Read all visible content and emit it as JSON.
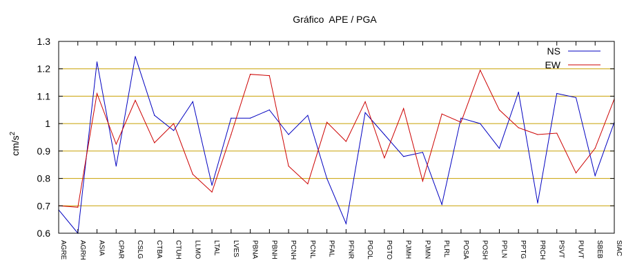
{
  "chart_data": {
    "type": "line",
    "title": "Gráfico  APE / PGA",
    "xlabel": "",
    "ylabel": "cm/s",
    "ylabel_superscript": "2",
    "ylim": [
      0.6,
      1.3
    ],
    "yticks": [
      "0.6",
      "0.7",
      "0.8",
      "0.9",
      "1",
      "1.1",
      "1.2",
      "1.3"
    ],
    "grid": "horizontal",
    "grid_color": "#c8a000",
    "legend_position": "top-right",
    "categories": [
      "AGRE",
      "AGRH",
      "ASIA",
      "CPAR",
      "CSLG",
      "CTBA",
      "CTUH",
      "LLMO",
      "LTAL",
      "LVES",
      "PBNA",
      "PBNH",
      "PCNH",
      "PCNL",
      "PFAL",
      "PFNR",
      "PGOL",
      "PGTO",
      "PJMH",
      "PJMN",
      "PLRL",
      "POSA",
      "POSH",
      "PPLN",
      "PPTG",
      "PRCH",
      "PSVT",
      "PUVT",
      "SBEB",
      "SIAC"
    ],
    "series": [
      {
        "name": "NS",
        "color": "#0000c0",
        "values": [
          0.685,
          0.6,
          1.225,
          0.845,
          1.245,
          1.03,
          0.975,
          1.08,
          0.775,
          1.02,
          1.02,
          1.05,
          0.96,
          1.03,
          0.8,
          0.635,
          1.04,
          0.96,
          0.88,
          0.895,
          0.705,
          1.02,
          1.0,
          0.91,
          1.115,
          0.71,
          1.11,
          1.095,
          0.81,
          1.005
        ]
      },
      {
        "name": "EW",
        "color": "#cc0000",
        "values": [
          0.7,
          0.695,
          1.11,
          0.925,
          1.085,
          0.93,
          1.0,
          0.815,
          0.75,
          0.96,
          1.18,
          1.175,
          0.845,
          0.78,
          1.005,
          0.935,
          1.08,
          0.875,
          1.055,
          0.79,
          1.035,
          1.005,
          1.195,
          1.05,
          0.985,
          0.96,
          0.965,
          0.82,
          0.91,
          1.09
        ]
      }
    ]
  }
}
